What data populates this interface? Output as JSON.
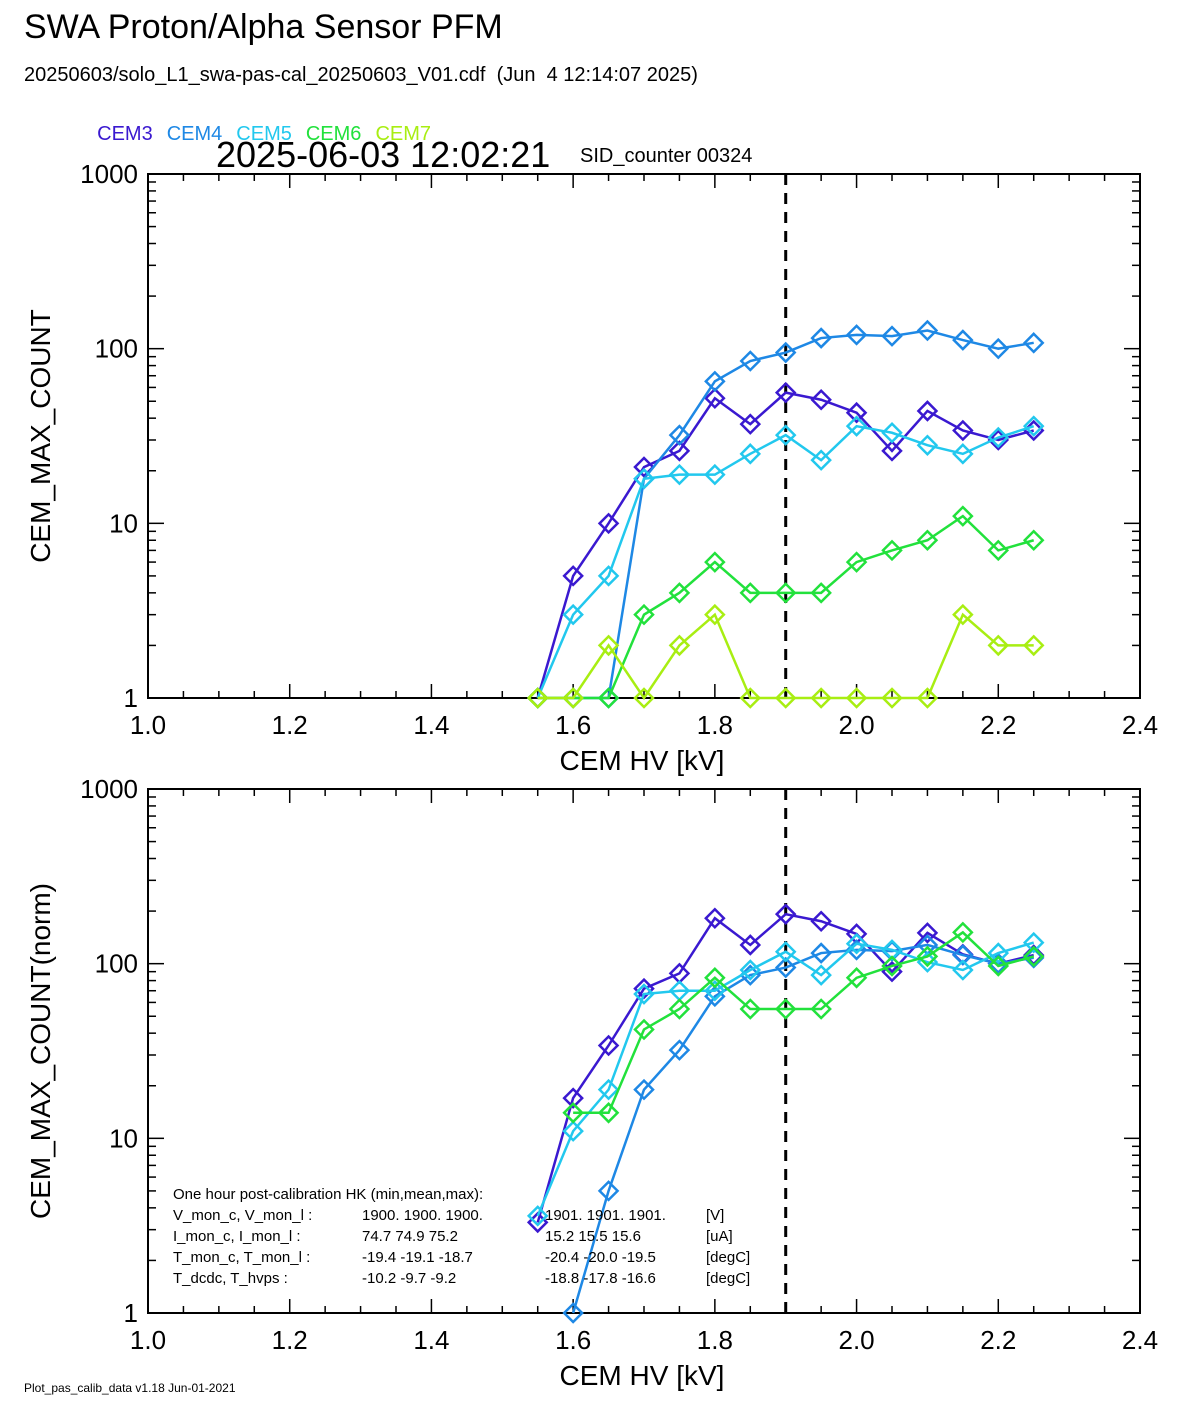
{
  "header": {
    "title": "SWA Proton/Alpha Sensor PFM",
    "subtitle": "20250603/solo_L1_swa-pas-cal_20250603_V01.cdf  (Jun  4 12:14:07 2025)",
    "timestamp": "2025-06-03 12:02:21",
    "sid_label": "SID_counter 00324"
  },
  "legend": [
    {
      "label": "CEM3",
      "color": "#3a19d0"
    },
    {
      "label": "CEM4",
      "color": "#1e88e5"
    },
    {
      "label": "CEM5",
      "color": "#22c8ee"
    },
    {
      "label": "CEM6",
      "color": "#22e13c"
    },
    {
      "label": "CEM7",
      "color": "#a8ee12"
    }
  ],
  "footer": "Plot_pas_calib_data v1.18 Jun-01-2021",
  "chart_data": [
    {
      "type": "line",
      "xlabel": "CEM HV [kV]",
      "ylabel": "CEM_MAX_COUNT",
      "xlim": [
        1.0,
        2.4
      ],
      "ylim": [
        1,
        1000
      ],
      "yscale": "log",
      "xticks": [
        "1.0",
        "1.2",
        "1.4",
        "1.6",
        "1.8",
        "2.0",
        "2.2",
        "2.4"
      ],
      "yticks": [
        "1",
        "10",
        "100",
        "1000"
      ],
      "vline": 1.9,
      "x": [
        1.55,
        1.6,
        1.65,
        1.7,
        1.75,
        1.8,
        1.85,
        1.9,
        1.95,
        2.0,
        2.05,
        2.1,
        2.15,
        2.2,
        2.25
      ],
      "series": [
        {
          "name": "CEM3",
          "color": "#3a19d0",
          "values": [
            1,
            5,
            10,
            21,
            26,
            52,
            37,
            56,
            51,
            43,
            26,
            44,
            34,
            30,
            34
          ]
        },
        {
          "name": "CEM4",
          "color": "#1e88e5",
          "values": [
            1,
            1,
            1,
            18,
            32,
            65,
            85,
            95,
            115,
            120,
            118,
            127,
            112,
            100,
            108
          ]
        },
        {
          "name": "CEM5",
          "color": "#22c8ee",
          "values": [
            1,
            3,
            5,
            18,
            19,
            19,
            25,
            32,
            23,
            36,
            33,
            28,
            25,
            31,
            36
          ]
        },
        {
          "name": "CEM6",
          "color": "#22e13c",
          "values": [
            1,
            1,
            1,
            3,
            4,
            6,
            4,
            4,
            4,
            6,
            7,
            8,
            11,
            7,
            8
          ]
        },
        {
          "name": "CEM7",
          "color": "#a8ee12",
          "values": [
            1,
            1,
            2,
            1,
            2,
            3,
            1,
            1,
            1,
            1,
            1,
            1,
            3,
            2,
            2
          ]
        }
      ]
    },
    {
      "type": "line",
      "xlabel": "CEM HV [kV]",
      "ylabel": "CEM_MAX_COUNT(norm)",
      "xlim": [
        1.0,
        2.4
      ],
      "ylim": [
        1,
        1000
      ],
      "yscale": "log",
      "xticks": [
        "1.0",
        "1.2",
        "1.4",
        "1.6",
        "1.8",
        "2.0",
        "2.2",
        "2.4"
      ],
      "yticks": [
        "1",
        "10",
        "100",
        "1000"
      ],
      "vline": 1.9,
      "x": [
        1.55,
        1.6,
        1.65,
        1.7,
        1.75,
        1.8,
        1.85,
        1.9,
        1.95,
        2.0,
        2.05,
        2.1,
        2.15,
        2.2,
        2.25
      ],
      "series": [
        {
          "name": "CEM3",
          "color": "#3a19d0",
          "values": [
            3.3,
            17,
            34,
            72,
            88,
            182,
            128,
            192,
            175,
            148,
            90,
            150,
            113,
            100,
            112
          ]
        },
        {
          "name": "CEM4",
          "color": "#1e88e5",
          "values": [
            null,
            1,
            5,
            19,
            32,
            65,
            86,
            95,
            115,
            120,
            118,
            128,
            112,
            100,
            108
          ]
        },
        {
          "name": "CEM5",
          "color": "#22c8ee",
          "values": [
            3.6,
            11,
            19,
            67,
            70,
            70,
            92,
            117,
            86,
            130,
            120,
            102,
            92,
            115,
            132
          ]
        },
        {
          "name": "CEM6",
          "color": "#22e13c",
          "values": [
            null,
            14,
            14,
            42,
            55,
            83,
            55,
            55,
            55,
            83,
            97,
            110,
            151,
            97,
            110
          ]
        }
      ],
      "annotation": {
        "heading": "One hour post-calibration HK (min,mean,max):",
        "rows": [
          {
            "label": "V_mon_c, V_mon_l :",
            "c": "1900.  1900.  1900.",
            "l": "1901.  1901.  1901.",
            "unit": "[V]"
          },
          {
            "label": "I_mon_c,  I_mon_l :",
            "c": "74.7   74.9   75.2",
            "l": "15.2   15.5   15.6",
            "unit": "[uA]"
          },
          {
            "label": "T_mon_c, T_mon_l :",
            "c": "-19.4   -19.1   -18.7",
            "l": "-20.4   -20.0   -19.5",
            "unit": "[degC]"
          },
          {
            "label": "T_dcdc,    T_hvps :",
            "c": "-10.2   -9.7   -9.2",
            "l": "-18.8   -17.8   -16.6",
            "unit": "[degC]"
          }
        ]
      }
    }
  ]
}
